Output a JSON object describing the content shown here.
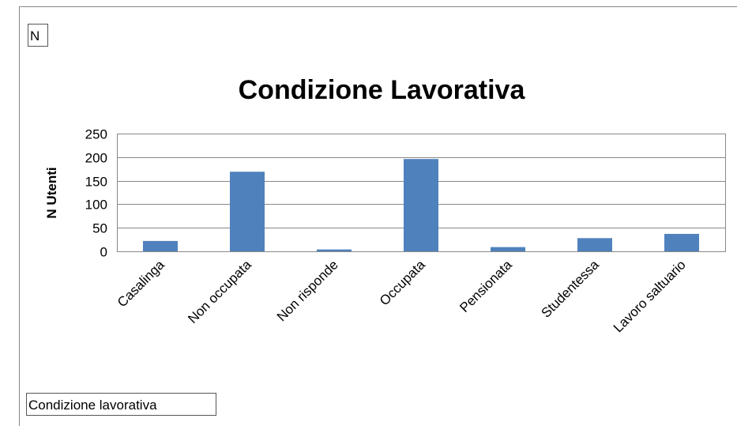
{
  "buttons": {
    "value_field": "N",
    "axis_field": "Condizione lavorativa"
  },
  "chart_data": {
    "type": "bar",
    "title": "Condizione Lavorativa",
    "y_label": "N Utenti",
    "categories": [
      "Casalinga",
      "Non occupata",
      "Non risponde",
      "Occupata",
      "Pensionata",
      "Studentessa",
      "Lavoro saltuario"
    ],
    "values": [
      22,
      169,
      4,
      196,
      9,
      28,
      37
    ],
    "color": "#4f81bd",
    "ylim": [
      0,
      250
    ],
    "yticks": [
      0,
      50,
      100,
      150,
      200,
      250
    ],
    "grid": true
  }
}
